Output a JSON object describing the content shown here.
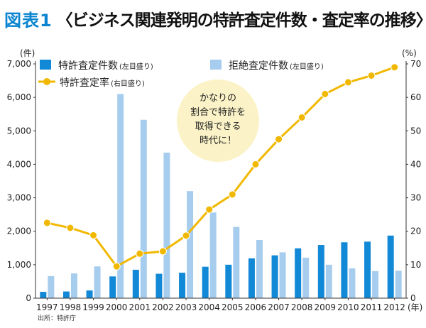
{
  "title": {
    "badge": "図表1",
    "text": "〈ビジネス関連発明の特許査定件数・査定率の推移〉"
  },
  "source": "出所：特許庁",
  "callout": [
    "かなりの",
    "割合で特許を",
    "取得できる",
    "時代に！"
  ],
  "colors": {
    "granted": "#1289d6",
    "rejected": "#a7cdee",
    "rate": "#f1b800",
    "bubble": "#fbf3c7",
    "title_badge": "#0c85d0"
  },
  "chart_data": {
    "type": "bar",
    "categories": [
      "1997",
      "1998",
      "1999",
      "2000",
      "2001",
      "2002",
      "2003",
      "2004",
      "2005",
      "2006",
      "2007",
      "2008",
      "2009",
      "2010",
      "2011",
      "2012"
    ],
    "x_unit": "(年)",
    "y_left": {
      "unit": "(件)",
      "range": [
        0,
        7000
      ],
      "ticks": [
        0,
        1000,
        2000,
        3000,
        4000,
        5000,
        6000,
        7000
      ],
      "tick_labels": [
        "0",
        "1,000",
        "2,000",
        "3,000",
        "4,000",
        "5,000",
        "6,000",
        "7,000"
      ]
    },
    "y_right": {
      "unit": "(%)",
      "range": [
        0,
        70
      ],
      "ticks": [
        0,
        10,
        20,
        30,
        40,
        50,
        60,
        70
      ],
      "tick_labels": [
        "0",
        "10",
        "20",
        "30",
        "40",
        "50",
        "60",
        "70"
      ]
    },
    "series": [
      {
        "name": "特許査定件数",
        "axis_note": "(左目盛り)",
        "kind": "bar",
        "axis": "left",
        "values": [
          190,
          200,
          230,
          650,
          850,
          730,
          760,
          940,
          1000,
          1190,
          1280,
          1490,
          1590,
          1670,
          1690,
          1870
        ]
      },
      {
        "name": "拒絶査定件数",
        "axis_note": "(左目盛り)",
        "kind": "bar",
        "axis": "left",
        "values": [
          660,
          740,
          950,
          6100,
          5330,
          4350,
          3200,
          2560,
          2130,
          1740,
          1370,
          1210,
          1000,
          890,
          810,
          820
        ]
      },
      {
        "name": "特許査定率",
        "axis_note": "(右目盛り)",
        "kind": "line",
        "axis": "right",
        "values": [
          22.5,
          21,
          18.8,
          9.5,
          13.3,
          14,
          18.7,
          26.5,
          31,
          40,
          47.5,
          54,
          61,
          64.5,
          66.5,
          69
        ]
      }
    ],
    "grid": false,
    "legend_position": "top-left"
  }
}
